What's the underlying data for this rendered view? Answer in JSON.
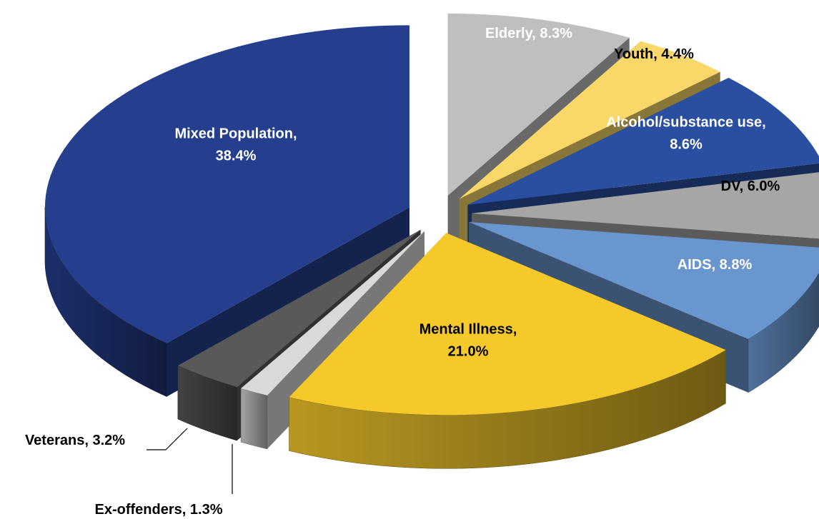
{
  "chart_data": {
    "type": "pie3d",
    "categories": [
      "Elderly,",
      "Youth,",
      "Alcohol/substance use,",
      "DV,",
      "AIDS,",
      "Mental Illness,",
      "Ex-offenders,",
      "Veterans,",
      "Mixed Population,"
    ],
    "values": [
      8.3,
      4.4,
      8.6,
      6.0,
      8.8,
      21.0,
      1.3,
      3.2,
      38.4
    ],
    "value_labels": [
      "8.3%",
      "4.4%",
      "8.6%",
      "6.0%",
      "8.8%",
      "21.0%",
      "1.3%",
      "3.2%",
      "38.4%"
    ],
    "colors": [
      "#bfbfbf",
      "#f9d869",
      "#2a4ea0",
      "#a6a6a6",
      "#6a96d0",
      "#f5c92a",
      "#d9d9d9",
      "#595959",
      "#253f8e"
    ]
  }
}
